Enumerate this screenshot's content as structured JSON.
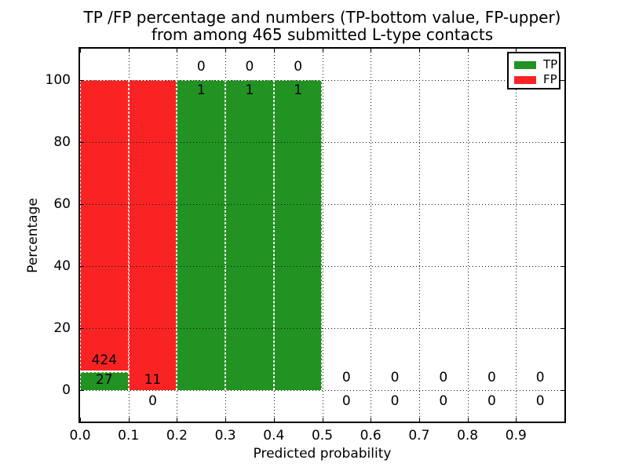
{
  "figure": {
    "background": "#ffffff",
    "title_line1": "TP /FP percentage and numbers (TP-bottom value, FP-upper)",
    "title_line2": "from among 465 submitted L-type contacts"
  },
  "chart_data": {
    "type": "bar",
    "stacked": true,
    "title": "TP /FP percentage and numbers (TP-bottom value, FP-upper) from among 465 submitted L-type contacts",
    "xlabel": "Predicted probability",
    "ylabel": "Percentage",
    "total_contacts": 465,
    "xlim": [
      0.0,
      1.0
    ],
    "ylim": [
      -10,
      110
    ],
    "grid": "dotted",
    "bar_edge_style": "white dashed",
    "xtick_values": [
      0.0,
      0.1,
      0.2,
      0.3,
      0.4,
      0.5,
      0.6,
      0.7,
      0.8,
      0.9
    ],
    "xtick_labels": [
      "0.0",
      "0.1",
      "0.2",
      "0.3",
      "0.4",
      "0.5",
      "0.6",
      "0.7",
      "0.8",
      "0.9"
    ],
    "ytick_values": [
      0,
      20,
      40,
      60,
      80,
      100
    ],
    "ytick_labels": [
      "0",
      "20",
      "40",
      "60",
      "80",
      "100"
    ],
    "colors": {
      "tp": "#229222",
      "fp": "#fa2323",
      "edge": "#ffffff",
      "text": "#000000"
    },
    "legend": {
      "position": "upper right",
      "items": [
        {
          "label": "TP",
          "color": "#229222"
        },
        {
          "label": "FP",
          "color": "#fa2323"
        }
      ]
    },
    "bins": [
      {
        "x0": 0.0,
        "x1": 0.1,
        "tp": 27,
        "fp": 424,
        "tp_pct": 5.99,
        "fp_pct": 94.01,
        "labels": [
          {
            "text": "424",
            "y_pct": 9.6
          },
          {
            "text": "27",
            "y_pct": 3.4
          }
        ]
      },
      {
        "x0": 0.1,
        "x1": 0.2,
        "tp": 0,
        "fp": 11,
        "tp_pct": 0,
        "fp_pct": 100,
        "labels": [
          {
            "text": "11",
            "y_pct": 3.4
          },
          {
            "text": "0",
            "y_pct": -3.5
          }
        ]
      },
      {
        "x0": 0.2,
        "x1": 0.3,
        "tp": 1,
        "fp": 0,
        "tp_pct": 100,
        "fp_pct": 0,
        "labels": [
          {
            "text": "0",
            "y_pct": 104.2
          },
          {
            "text": "1",
            "y_pct": 96.6
          }
        ]
      },
      {
        "x0": 0.3,
        "x1": 0.4,
        "tp": 1,
        "fp": 0,
        "tp_pct": 100,
        "fp_pct": 0,
        "labels": [
          {
            "text": "0",
            "y_pct": 104.2
          },
          {
            "text": "1",
            "y_pct": 96.6
          }
        ]
      },
      {
        "x0": 0.4,
        "x1": 0.5,
        "tp": 1,
        "fp": 0,
        "tp_pct": 100,
        "fp_pct": 0,
        "labels": [
          {
            "text": "0",
            "y_pct": 104.2
          },
          {
            "text": "1",
            "y_pct": 96.6
          }
        ]
      },
      {
        "x0": 0.5,
        "x1": 0.6,
        "tp": 0,
        "fp": 0,
        "tp_pct": 0,
        "fp_pct": 0,
        "labels": [
          {
            "text": "0",
            "y_pct": 4.1
          },
          {
            "text": "0",
            "y_pct": -3.5
          }
        ]
      },
      {
        "x0": 0.6,
        "x1": 0.7,
        "tp": 0,
        "fp": 0,
        "tp_pct": 0,
        "fp_pct": 0,
        "labels": [
          {
            "text": "0",
            "y_pct": 4.1
          },
          {
            "text": "0",
            "y_pct": -3.5
          }
        ]
      },
      {
        "x0": 0.7,
        "x1": 0.8,
        "tp": 0,
        "fp": 0,
        "tp_pct": 0,
        "fp_pct": 0,
        "labels": [
          {
            "text": "0",
            "y_pct": 4.1
          },
          {
            "text": "0",
            "y_pct": -3.5
          }
        ]
      },
      {
        "x0": 0.8,
        "x1": 0.9,
        "tp": 0,
        "fp": 0,
        "tp_pct": 0,
        "fp_pct": 0,
        "labels": [
          {
            "text": "0",
            "y_pct": 4.1
          },
          {
            "text": "0",
            "y_pct": -3.5
          }
        ]
      },
      {
        "x0": 0.9,
        "x1": 1.0,
        "tp": 0,
        "fp": 0,
        "tp_pct": 0,
        "fp_pct": 0,
        "labels": [
          {
            "text": "0",
            "y_pct": 4.1
          },
          {
            "text": "0",
            "y_pct": -3.5
          }
        ]
      }
    ]
  }
}
